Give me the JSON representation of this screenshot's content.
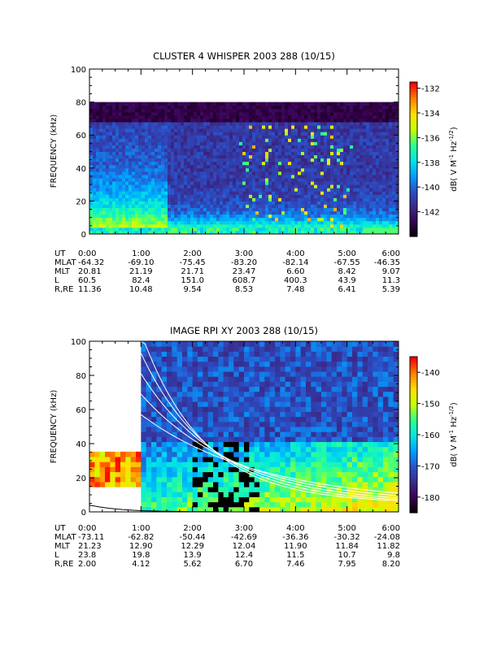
{
  "chart_data": [
    {
      "type": "heatmap",
      "title": "CLUSTER 4 WHISPER 2003 288 (10/15)",
      "ylabel": "FREQUENCY (kHz)",
      "ylim": [
        0,
        100
      ],
      "yticks": [
        "0",
        "20",
        "40",
        "60",
        "80",
        "100"
      ],
      "xticks": [
        "0:00",
        "1:00",
        "2:00",
        "3:00",
        "4:00",
        "5:00",
        "6:00"
      ],
      "colorbar": {
        "label": "dB( V M",
        "label_sup1": "-1",
        "label_mid": " Hz",
        "label_sup2": "-1/2",
        "label_end": ")",
        "range": [
          -144,
          -131.5
        ],
        "ticks": [
          "-132",
          "-134",
          "-136",
          "-138",
          "-140",
          "-142"
        ],
        "colormap": [
          "#000000",
          "#3a0050",
          "#3a2a8a",
          "#2a50c8",
          "#00a0ff",
          "#00e6e6",
          "#30ff90",
          "#c8ff00",
          "#ffe000",
          "#ff8000",
          "#ff0000"
        ]
      },
      "ephemeris": {
        "labels": [
          "UT",
          "MLAT",
          "MLT",
          "L",
          "R,RE"
        ],
        "UT": [
          "0:00",
          "1:00",
          "2:00",
          "3:00",
          "4:00",
          "5:00",
          "6:00"
        ],
        "MLAT": [
          "-64.32",
          "-69.10",
          "-75.45",
          "-83.20",
          "-82.14",
          "-67.55",
          "-46.35"
        ],
        "MLT": [
          "20.81",
          "21.19",
          "21.71",
          "23.47",
          "6.60",
          "8.42",
          "9.07"
        ],
        "L": [
          "60.5",
          "82.4",
          "151.0",
          "608.7",
          "400.3",
          "43.9",
          "11.3"
        ],
        "R,RE": [
          "11.36",
          "10.48",
          "9.54",
          "8.53",
          "7.48",
          "6.41",
          "5.39"
        ]
      }
    },
    {
      "type": "heatmap",
      "title": "IMAGE RPI XY 2003 288 (10/15)",
      "ylabel": "FREQUENCY (kHz)",
      "ylim": [
        0,
        100
      ],
      "yticks": [
        "0",
        "20",
        "40",
        "60",
        "80",
        "100"
      ],
      "xticks": [
        "0:00",
        "1:00",
        "2:00",
        "3:00",
        "4:00",
        "5:00",
        "6:00"
      ],
      "colorbar": {
        "label": "dB( V M",
        "label_sup1": "-1",
        "label_mid": " Hz",
        "label_sup2": "-1/2",
        "label_end": ")",
        "range": [
          -185,
          -135
        ],
        "ticks": [
          "-140",
          "-150",
          "-160",
          "-170",
          "-180"
        ],
        "colormap": [
          "#000000",
          "#3a0050",
          "#3a2a8a",
          "#2a50c8",
          "#00a0ff",
          "#00e6e6",
          "#30ff90",
          "#c8ff00",
          "#ffe000",
          "#ff8000",
          "#ff0000"
        ]
      },
      "ephemeris": {
        "labels": [
          "UT",
          "MLAT",
          "MLT",
          "L",
          "R,RE"
        ],
        "UT": [
          "0:00",
          "1:00",
          "2:00",
          "3:00",
          "4:00",
          "5:00",
          "6:00"
        ],
        "MLAT": [
          "-73.11",
          "-62.82",
          "-50.44",
          "-42.69",
          "-36.36",
          "-30.32",
          "-24.08"
        ],
        "MLT": [
          "21.23",
          "12.90",
          "12.29",
          "12.04",
          "11.90",
          "11.84",
          "11.82"
        ],
        "L": [
          "23.8",
          "19.8",
          "13.9",
          "12.4",
          "11.5",
          "10.7",
          "9.8"
        ],
        "R,RE": [
          "2.00",
          "4.12",
          "5.62",
          "6.70",
          "7.46",
          "7.95",
          "8.20"
        ]
      }
    }
  ]
}
